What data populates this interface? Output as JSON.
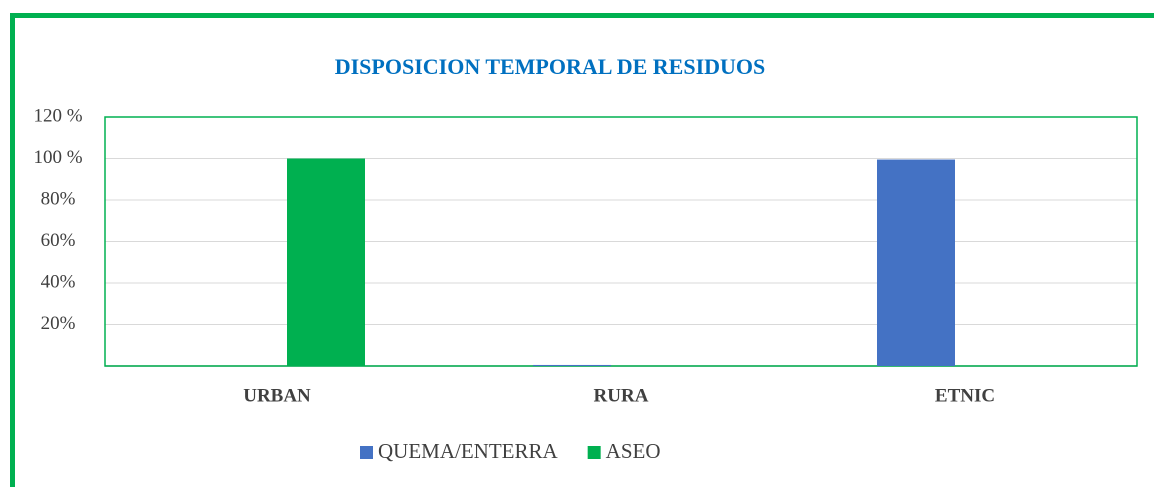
{
  "chart_data": {
    "type": "bar",
    "title": "DISPOSICION TEMPORAL DE RESIDUOS",
    "categories": [
      "URBAN",
      "RURA",
      "ETNIC"
    ],
    "series": [
      {
        "name": "QUEMA/ENTERRA",
        "color": "#4472c4",
        "values": [
          0,
          0.5,
          99.5
        ]
      },
      {
        "name": "ASEO",
        "color": "#00b050",
        "values": [
          100,
          0,
          0
        ]
      }
    ],
    "ylim": [
      0,
      120
    ],
    "yticks": [
      {
        "value": 20,
        "label": "20%"
      },
      {
        "value": 40,
        "label": "40%"
      },
      {
        "value": 60,
        "label": "60%"
      },
      {
        "value": 80,
        "label": "80%"
      },
      {
        "value": 100,
        "label": "100 %"
      },
      {
        "value": 120,
        "label": "120 %"
      }
    ],
    "grid": true,
    "legend": "bottom"
  }
}
